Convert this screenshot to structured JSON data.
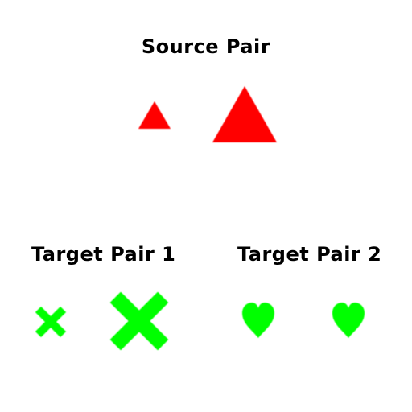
{
  "headings": {
    "source": "Source Pair",
    "target1": "Target Pair 1",
    "target2": "Target Pair 2"
  },
  "colors": {
    "source_shapes": "#ff0000",
    "target_shapes": "#00ff00",
    "text": "#000000",
    "background": "#ffffff"
  },
  "source_pair": {
    "shape": "triangle-icon",
    "relation": "small-to-large"
  },
  "target_pair_1": {
    "shape": "cross-icon",
    "relation": "small-to-large"
  },
  "target_pair_2": {
    "shape": "heart-icon",
    "relation": "same-size"
  }
}
